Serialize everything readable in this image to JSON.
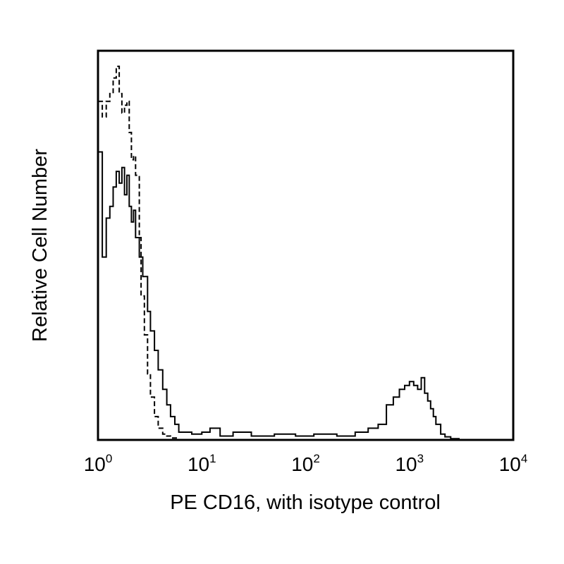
{
  "chart_data": {
    "type": "line",
    "title": "",
    "xlabel": "PE CD16, with isotype control",
    "ylabel": "Relative Cell Number",
    "x_scale": "log",
    "xlim": [
      1,
      10000
    ],
    "ylim": [
      0,
      100
    ],
    "grid": false,
    "legend": "none",
    "x_ticks": [
      {
        "base": "10",
        "exp": "0"
      },
      {
        "base": "10",
        "exp": "1"
      },
      {
        "base": "10",
        "exp": "2"
      },
      {
        "base": "10",
        "exp": "3"
      },
      {
        "base": "10",
        "exp": "4"
      }
    ],
    "series": [
      {
        "style": "solid",
        "color": "#000000",
        "x": [
          1.0,
          1.1,
          1.2,
          1.3,
          1.4,
          1.5,
          1.6,
          1.7,
          1.8,
          1.9,
          2.0,
          2.1,
          2.2,
          2.3,
          2.5,
          2.7,
          3.0,
          3.2,
          3.5,
          3.8,
          4.2,
          4.6,
          5.0,
          5.5,
          6.0,
          7.0,
          8.0,
          10,
          12,
          15,
          20,
          30,
          50,
          80,
          120,
          200,
          300,
          400,
          500,
          600,
          700,
          800,
          900,
          1000,
          1100,
          1200,
          1300,
          1400,
          1500,
          1600,
          1700,
          1800,
          2000,
          2200,
          2500,
          3000,
          10000
        ],
        "y": [
          74,
          47,
          57,
          60,
          65,
          69,
          66,
          70,
          63,
          68,
          60,
          56,
          59,
          52,
          47,
          42,
          33,
          28,
          23,
          18,
          13,
          9,
          6,
          4,
          2,
          2,
          1.5,
          2,
          3,
          1,
          2,
          1,
          1.5,
          1,
          1.5,
          1,
          2,
          3,
          4,
          9,
          11,
          13,
          14,
          15,
          14,
          13,
          16,
          12,
          10,
          8,
          6,
          4,
          1.5,
          0.8,
          0.3,
          0,
          0
        ]
      },
      {
        "style": "dashed",
        "color": "#000000",
        "x": [
          1.0,
          1.1,
          1.2,
          1.3,
          1.4,
          1.5,
          1.6,
          1.7,
          1.8,
          1.9,
          2.0,
          2.1,
          2.2,
          2.3,
          2.5,
          2.6,
          2.8,
          3.0,
          3.2,
          3.5,
          3.8,
          4.2,
          4.6,
          5.0,
          6.0,
          8.0,
          10,
          20,
          100,
          1000,
          10000
        ],
        "y": [
          87,
          83,
          87,
          89,
          93,
          96,
          89,
          84,
          86,
          87,
          79,
          72,
          73,
          68,
          52,
          37,
          27,
          17,
          11,
          6,
          3,
          1.5,
          1,
          0.5,
          0,
          0,
          0,
          0,
          0,
          0,
          0
        ]
      }
    ]
  }
}
